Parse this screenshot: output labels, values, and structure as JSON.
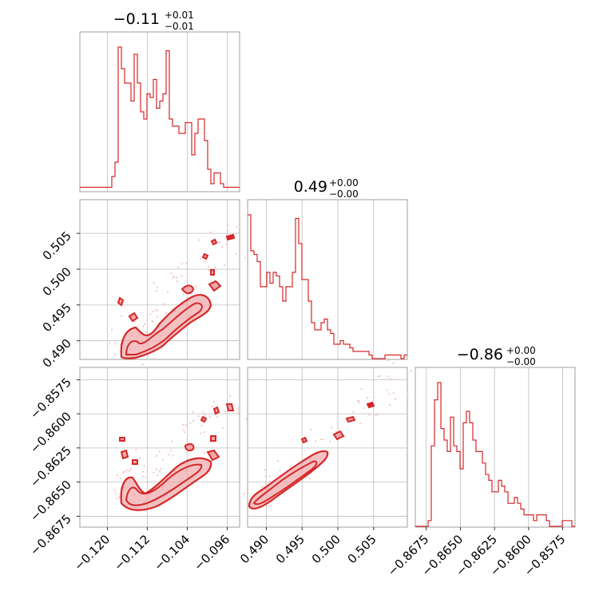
{
  "colors": {
    "accent": "#d62728",
    "fill_light": "#f0a7a9",
    "scatter": "#f4c6c7"
  },
  "chart_data": {
    "type": "corner",
    "parameters": [
      {
        "title": {
          "main": "−0.11",
          "sup": "+0.01",
          "sub": "−0.01"
        },
        "range": [
          -0.1255,
          -0.0935
        ],
        "ticks": [
          -0.12,
          -0.112,
          -0.104,
          -0.096
        ],
        "tick_labels": [
          "−0.120",
          "−0.112",
          "−0.104",
          "−0.096"
        ],
        "hist": [
          1,
          1,
          1,
          1,
          1,
          1,
          1,
          1,
          1,
          1,
          4,
          8,
          40,
          34,
          30,
          30,
          25,
          38,
          30,
          22,
          20,
          27,
          26,
          31,
          23,
          25,
          27,
          39,
          20,
          18,
          18,
          16,
          16,
          19,
          19,
          10,
          16,
          20,
          20,
          14,
          6,
          2,
          5,
          5,
          2,
          1,
          1,
          1,
          1,
          1
        ]
      },
      {
        "title": {
          "main": "0.49",
          "sup": "+0.00",
          "sub": "−0.00"
        },
        "range": [
          0.4874,
          0.5097
        ],
        "ticks": [
          0.49,
          0.495,
          0.5,
          0.505
        ],
        "tick_labels": [
          "0.490",
          "0.495",
          "0.500",
          "0.505"
        ],
        "hist": [
          40,
          30,
          29,
          27,
          20,
          20,
          24,
          21,
          24,
          23,
          20,
          16,
          20,
          20,
          24,
          39,
          32,
          22,
          22,
          16,
          10,
          8,
          8,
          10,
          11,
          8,
          7,
          4,
          4,
          5,
          4,
          4,
          3,
          2,
          2,
          2,
          2,
          2,
          1,
          0,
          0,
          0,
          0,
          1,
          1,
          1,
          1,
          1,
          0,
          1
        ]
      },
      {
        "title": {
          "main": "−0.86",
          "sup": "+0.00",
          "sub": "−0.00"
        },
        "range": [
          -0.8683,
          -0.8566
        ],
        "ticks": [
          -0.8675,
          -0.865,
          -0.8625,
          -0.86,
          -0.8575
        ],
        "tick_labels": [
          "−0.8675",
          "−0.8650",
          "−0.8625",
          "−0.8600",
          "−0.8575"
        ],
        "hist": [
          0,
          0,
          0,
          0,
          1,
          14,
          22,
          25,
          17,
          15,
          13,
          19,
          14,
          13,
          10,
          18,
          20,
          18,
          15,
          13,
          13,
          11,
          9,
          8,
          6,
          6,
          8,
          7,
          6,
          4,
          4,
          5,
          4,
          3,
          2,
          2,
          2,
          1,
          2,
          2,
          2,
          1,
          0,
          0,
          0,
          0,
          1,
          1,
          1,
          0
        ]
      }
    ]
  }
}
